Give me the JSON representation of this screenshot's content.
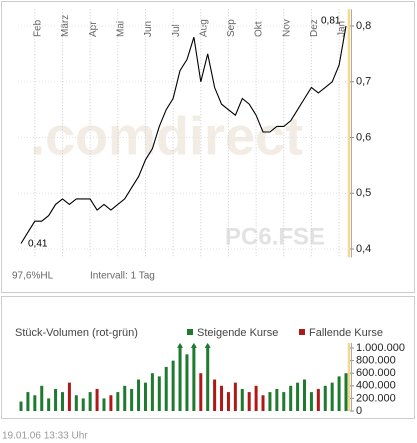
{
  "chart_data": [
    {
      "type": "line",
      "watermark": ".comdirect",
      "symbol": "PC6.FSE",
      "high_label": "0,81",
      "low_label": "0,41",
      "range_info": "97,6%HL",
      "interval": "Intervall: 1 Tag",
      "categories": [
        null,
        null,
        "Feb",
        null,
        null,
        null,
        "März",
        null,
        null,
        null,
        "Apr",
        null,
        null,
        null,
        "Mai",
        null,
        null,
        null,
        "Jun",
        null,
        null,
        null,
        "Jul",
        null,
        null,
        null,
        "Aug",
        null,
        null,
        null,
        "Sep",
        null,
        null,
        null,
        "Okt",
        null,
        null,
        null,
        "Nov",
        null,
        null,
        null,
        "Dez",
        null,
        null,
        null,
        "Jan",
        null
      ],
      "series": [
        {
          "color": "#000000",
          "values": [
            0.41,
            0.43,
            0.45,
            0.45,
            0.46,
            0.48,
            0.49,
            0.48,
            0.49,
            0.49,
            0.49,
            0.47,
            0.48,
            0.47,
            0.48,
            0.49,
            0.51,
            0.53,
            0.56,
            0.58,
            0.62,
            0.65,
            0.67,
            0.72,
            0.74,
            0.78,
            0.7,
            0.75,
            0.69,
            0.66,
            0.65,
            0.64,
            0.67,
            0.66,
            0.64,
            0.61,
            0.61,
            0.62,
            0.62,
            0.63,
            0.65,
            0.67,
            0.69,
            0.68,
            0.69,
            0.7,
            0.73,
            0.8
          ]
        }
      ],
      "ylim": [
        0.385,
        0.83
      ],
      "yticks": [
        {
          "value": 0.4,
          "label": "0,4"
        },
        {
          "value": 0.5,
          "label": "0,5"
        },
        {
          "value": 0.6,
          "label": "0,6"
        },
        {
          "value": 0.7,
          "label": "0,7"
        },
        {
          "value": 0.8,
          "label": "0,8"
        }
      ],
      "grid": true,
      "marker_color": "#f5d88a"
    },
    {
      "type": "bar",
      "title": "Stück-Volumen (rot-grün)",
      "series": [
        {
          "name": "Steigende Kurse",
          "color": "#1e7a2e",
          "values": [
            150000,
            300000,
            250000,
            400000,
            200000,
            350000,
            300000,
            null,
            250000,
            200000,
            300000,
            null,
            200000,
            null,
            300000,
            400000,
            350000,
            500000,
            450000,
            600000,
            550000,
            700000,
            800000,
            1050000,
            900000,
            1050000,
            null,
            1050000,
            null,
            null,
            null,
            null,
            350000,
            null,
            null,
            null,
            300000,
            350000,
            300000,
            400000,
            450000,
            500000,
            300000,
            null,
            400000,
            450000,
            550000,
            600000
          ]
        },
        {
          "name": "Fallende Kurse",
          "color": "#b01818",
          "values": [
            null,
            null,
            null,
            null,
            null,
            null,
            null,
            450000,
            null,
            null,
            null,
            350000,
            null,
            250000,
            null,
            null,
            null,
            null,
            null,
            null,
            null,
            null,
            null,
            null,
            null,
            null,
            600000,
            null,
            500000,
            400000,
            300000,
            450000,
            null,
            300000,
            400000,
            250000,
            null,
            null,
            null,
            null,
            null,
            null,
            null,
            350000,
            null,
            null,
            null,
            null
          ]
        }
      ],
      "ylim": [
        0,
        1080000
      ],
      "yticks": [
        0,
        {
          "value": 200000,
          "label": "200.000"
        },
        {
          "value": 400000,
          "label": "400.000"
        },
        {
          "value": 600000,
          "label": "600.000"
        },
        {
          "value": 800000,
          "label": "800.000"
        },
        {
          "value": 1000000,
          "label": "1.000.000"
        }
      ]
    }
  ],
  "footer": "19.01.06  13:33 Uhr"
}
